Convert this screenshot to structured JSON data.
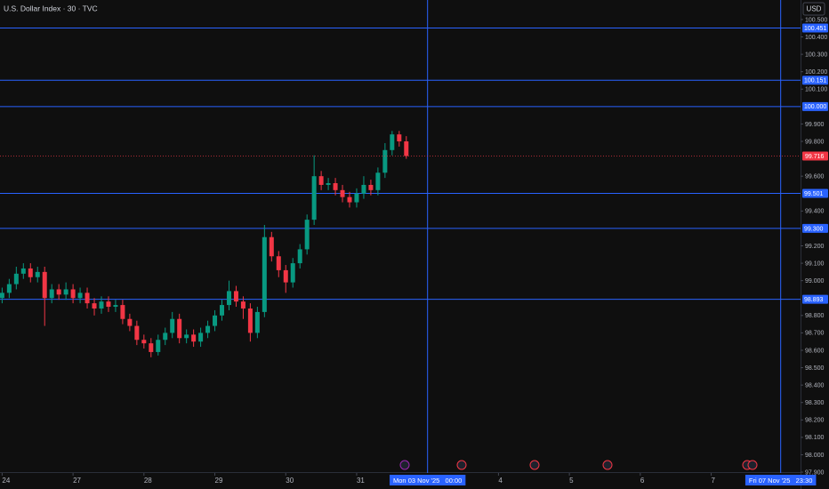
{
  "chart_data": {
    "type": "candlestick",
    "title": "U.S. Dollar Index · 30 · TVC",
    "currency": "USD",
    "up_color": "#089981",
    "down_color": "#f23645",
    "x": [
      0,
      0.1,
      0.2,
      0.3,
      0.4,
      0.5,
      0.6,
      0.7,
      0.8,
      0.9,
      1,
      1.1,
      1.2,
      1.3,
      1.4,
      1.5,
      1.6,
      1.7,
      1.8,
      1.9,
      2,
      2.1,
      2.2,
      2.3,
      2.4,
      2.5,
      2.6,
      2.7,
      2.8,
      2.9,
      3,
      3.1,
      3.2,
      3.3,
      3.4,
      3.5,
      3.6,
      3.7,
      3.8,
      3.9,
      4,
      4.1,
      4.2,
      4.3,
      4.4,
      4.5,
      4.6,
      4.7,
      4.8,
      4.9,
      5,
      5.1,
      5.2,
      5.3,
      5.4,
      5.5,
      5.6,
      5.7
    ],
    "open": [
      98.9,
      98.93,
      98.98,
      99.04,
      99.07,
      99.02,
      99.05,
      98.9,
      98.95,
      98.92,
      98.95,
      98.9,
      98.93,
      98.87,
      98.84,
      98.88,
      98.85,
      98.86,
      98.78,
      98.74,
      98.66,
      98.64,
      98.59,
      98.66,
      98.7,
      98.78,
      98.67,
      98.69,
      98.65,
      98.7,
      98.74,
      98.8,
      98.86,
      98.94,
      98.88,
      98.84,
      98.7,
      98.82,
      99.25,
      99.14,
      99.06,
      98.99,
      99.1,
      99.18,
      99.35,
      99.6,
      99.55,
      99.56,
      99.52,
      99.48,
      99.45,
      99.5,
      99.55,
      99.52,
      99.62,
      99.75,
      99.84,
      99.8
    ],
    "high": [
      98.96,
      99.01,
      99.08,
      99.1,
      99.1,
      99.08,
      99.08,
      98.98,
      98.98,
      98.99,
      98.98,
      98.96,
      98.96,
      98.9,
      98.91,
      98.91,
      98.89,
      98.89,
      98.81,
      98.77,
      98.69,
      98.67,
      98.69,
      98.73,
      98.82,
      98.81,
      98.72,
      98.72,
      98.73,
      98.77,
      98.83,
      98.89,
      99.0,
      98.97,
      98.91,
      98.87,
      98.85,
      99.32,
      99.28,
      99.17,
      99.09,
      99.13,
      99.21,
      99.38,
      99.72,
      99.63,
      99.59,
      99.59,
      99.55,
      99.51,
      99.53,
      99.6,
      99.58,
      99.65,
      99.79,
      99.86,
      99.86,
      99.83
    ],
    "low": [
      98.87,
      98.9,
      98.95,
      99.01,
      98.99,
      98.99,
      98.74,
      98.87,
      98.89,
      98.89,
      98.87,
      98.87,
      98.84,
      98.8,
      98.81,
      98.82,
      98.82,
      98.75,
      98.71,
      98.63,
      98.61,
      98.56,
      98.57,
      98.63,
      98.67,
      98.64,
      98.64,
      98.62,
      98.62,
      98.67,
      98.71,
      98.77,
      98.83,
      98.85,
      98.78,
      98.65,
      98.67,
      98.79,
      99.11,
      99.02,
      98.93,
      98.96,
      99.07,
      99.15,
      99.32,
      99.52,
      99.52,
      99.49,
      99.45,
      99.42,
      99.42,
      99.47,
      99.49,
      99.49,
      99.59,
      99.72,
      99.77,
      99.7
    ],
    "close": [
      98.93,
      98.98,
      99.04,
      99.07,
      99.02,
      99.05,
      98.9,
      98.95,
      98.92,
      98.95,
      98.9,
      98.93,
      98.87,
      98.84,
      98.88,
      98.85,
      98.86,
      98.78,
      98.74,
      98.66,
      98.64,
      98.59,
      98.66,
      98.7,
      98.78,
      98.67,
      98.69,
      98.65,
      98.7,
      98.74,
      98.8,
      98.86,
      98.94,
      98.88,
      98.84,
      98.7,
      98.82,
      99.25,
      99.14,
      99.06,
      98.99,
      99.1,
      99.18,
      99.35,
      99.6,
      99.55,
      99.56,
      99.52,
      99.48,
      99.45,
      99.5,
      99.55,
      99.52,
      99.62,
      99.75,
      99.84,
      99.8,
      99.716
    ],
    "xlim": [
      -0.03,
      11.26
    ],
    "xticks": [
      {
        "value": 0,
        "label": "24"
      },
      {
        "value": 1,
        "label": "27"
      },
      {
        "value": 2,
        "label": "28"
      },
      {
        "value": 3,
        "label": "29"
      },
      {
        "value": 4,
        "label": "30"
      },
      {
        "value": 5,
        "label": "31"
      },
      {
        "value": 7,
        "label": "4"
      },
      {
        "value": 8,
        "label": "5"
      },
      {
        "value": 9,
        "label": "6"
      },
      {
        "value": 10,
        "label": "7"
      }
    ],
    "ylim": [
      97.839,
      100.612
    ],
    "yticks": [
      {
        "value": 100.5,
        "label": "100.500"
      },
      {
        "value": 100.4,
        "label": "100.400"
      },
      {
        "value": 100.3,
        "label": "100.300"
      },
      {
        "value": 100.2,
        "label": "100.200"
      },
      {
        "value": 100.1,
        "label": "100.100"
      },
      {
        "value": 99.9,
        "label": "99.900"
      },
      {
        "value": 99.8,
        "label": "99.800"
      },
      {
        "value": 99.6,
        "label": "99.600"
      },
      {
        "value": 99.4,
        "label": "99.400"
      },
      {
        "value": 99.2,
        "label": "99.200"
      },
      {
        "value": 99.1,
        "label": "99.100"
      },
      {
        "value": 99.0,
        "label": "99.000"
      },
      {
        "value": 98.8,
        "label": "98.800"
      },
      {
        "value": 98.7,
        "label": "98.700"
      },
      {
        "value": 98.6,
        "label": "98.600"
      },
      {
        "value": 98.5,
        "label": "98.500"
      },
      {
        "value": 98.4,
        "label": "98.400"
      },
      {
        "value": 98.3,
        "label": "98.300"
      },
      {
        "value": 98.2,
        "label": "98.200"
      },
      {
        "value": 98.1,
        "label": "98.100"
      },
      {
        "value": 98.0,
        "label": "98.000"
      },
      {
        "value": 97.9,
        "label": "97.900"
      }
    ],
    "level_color": "#2962ff",
    "levels": [
      100.451,
      100.151,
      {
        "value": 100.0,
        "label": "100.000"
      },
      99.501,
      {
        "value": 99.3,
        "label": "99.300"
      },
      98.893
    ],
    "last_price": 99.716,
    "last_color": "#f23645",
    "time_markers": [
      {
        "value": 6,
        "label": "Mon 03 Nov '25   00:00"
      },
      {
        "value": 10.98,
        "label": "Fri 07 Nov '25   23:30"
      }
    ]
  }
}
